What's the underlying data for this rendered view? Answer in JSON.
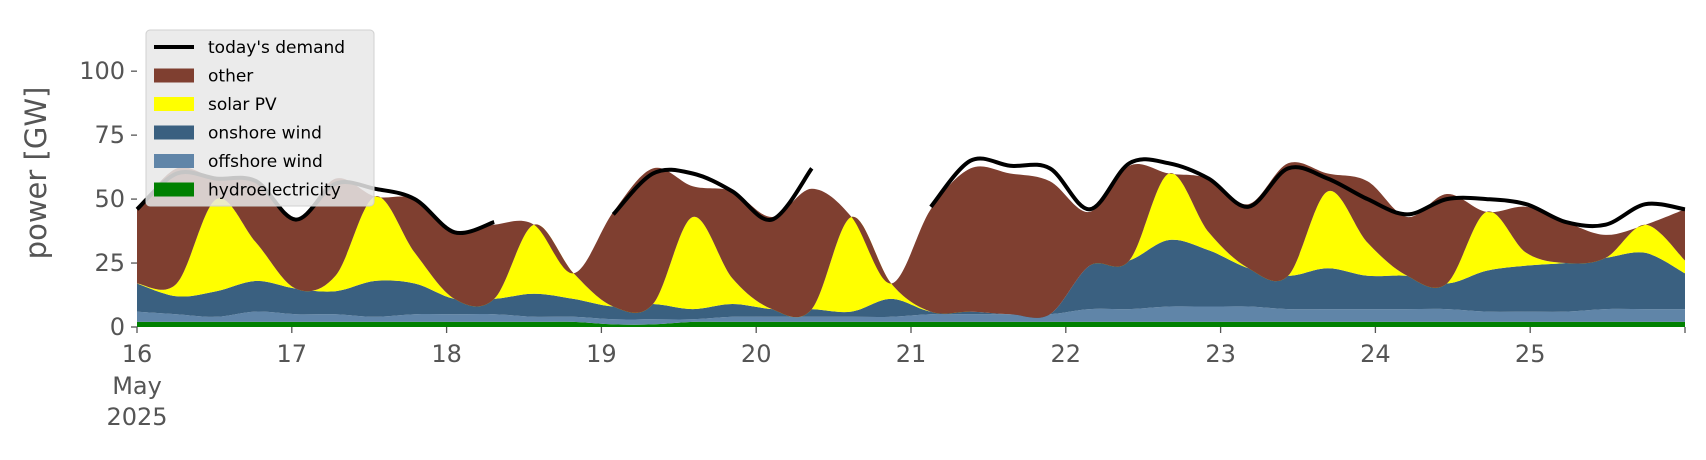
{
  "chart_data": {
    "type": "area",
    "title": "",
    "xlabel": "",
    "ylabel": "power [GW]",
    "x_start": "2025-05-16T00:00",
    "x_end": "2025-05-26T00:00",
    "x_ticks": [
      "2025-05-16",
      "2025-05-17",
      "2025-05-18",
      "2025-05-19",
      "2025-05-20",
      "2025-05-21",
      "2025-05-22",
      "2025-05-23",
      "2025-05-24",
      "2025-05-25"
    ],
    "x_tick_labels": [
      "16",
      "17",
      "18",
      "19",
      "20",
      "21",
      "22",
      "23",
      "24",
      "25"
    ],
    "x_tick_sublabels": [
      "May",
      "2025"
    ],
    "ylim": [
      0,
      120
    ],
    "y_ticks": [
      0,
      25,
      50,
      75,
      100
    ],
    "grid": false,
    "legend_position": "top-left",
    "legend": [
      "today's demand",
      "other",
      "solar PV",
      "onshore wind",
      "offshore wind",
      "hydroelectricity"
    ],
    "colors": {
      "demand": "#000000",
      "other": "#7f3f30",
      "solar": "#ffff00",
      "onshore": "#3a6080",
      "offshore": "#6085a8",
      "hydro": "#008000",
      "legend_bg": "#e8e8e8"
    },
    "resolution": "6h",
    "series": [
      {
        "key": "hydro",
        "name": "hydroelectricity",
        "values": [
          2,
          2,
          2,
          2,
          2,
          2,
          2,
          2,
          2,
          2,
          2,
          2,
          1,
          1,
          2,
          2,
          2,
          2,
          2,
          2,
          2,
          2,
          2,
          2,
          2,
          2,
          2,
          2,
          2,
          2,
          2,
          2,
          2,
          2,
          2,
          2,
          2,
          2,
          2,
          2
        ]
      },
      {
        "key": "offshore",
        "name": "offshore wind",
        "values": [
          4,
          3,
          2,
          4,
          3,
          3,
          2,
          3,
          3,
          3,
          2,
          2,
          2,
          2,
          1,
          2,
          2,
          2,
          2,
          2,
          3,
          3,
          3,
          3,
          5,
          5,
          6,
          6,
          6,
          5,
          5,
          5,
          5,
          5,
          4,
          4,
          4,
          5,
          5,
          5
        ]
      },
      {
        "key": "onshore",
        "name": "onshore wind",
        "values": [
          11,
          7,
          10,
          12,
          10,
          9,
          14,
          12,
          6,
          6,
          9,
          7,
          5,
          6,
          4,
          5,
          3,
          3,
          2,
          7,
          1,
          1,
          0,
          0,
          17,
          19,
          26,
          22,
          15,
          13,
          16,
          13,
          13,
          10,
          16,
          18,
          19,
          20,
          22,
          14
        ]
      },
      {
        "key": "solar",
        "name": "solar PV",
        "values": [
          0,
          5,
          36,
          15,
          0,
          6,
          33,
          12,
          0,
          0,
          27,
          10,
          0,
          0,
          36,
          10,
          0,
          0,
          37,
          6,
          0,
          0,
          0,
          0,
          0,
          0,
          26,
          7,
          0,
          0,
          30,
          13,
          0,
          0,
          23,
          5,
          0,
          0,
          11,
          5
        ]
      },
      {
        "key": "other",
        "name": "other",
        "values": [
          29,
          45,
          8,
          24,
          27,
          38,
          0,
          21,
          26,
          29,
          0,
          0,
          37,
          53,
          12,
          34,
          36,
          47,
          0,
          0,
          40,
          56,
          55,
          52,
          21,
          37,
          0,
          21,
          25,
          44,
          7,
          24,
          23,
          35,
          0,
          18,
          16,
          9,
          0,
          20
        ]
      }
    ],
    "demand": {
      "name": "today's demand",
      "values": [
        46,
        60,
        58,
        57,
        42,
        56,
        54,
        50,
        37,
        41,
        null,
        null,
        44,
        60,
        60,
        53,
        42,
        62,
        null,
        null,
        47,
        65,
        63,
        62,
        46,
        64,
        64,
        58,
        47,
        62,
        58,
        50,
        44,
        50,
        50,
        48,
        41,
        40,
        48,
        46
      ]
    }
  }
}
